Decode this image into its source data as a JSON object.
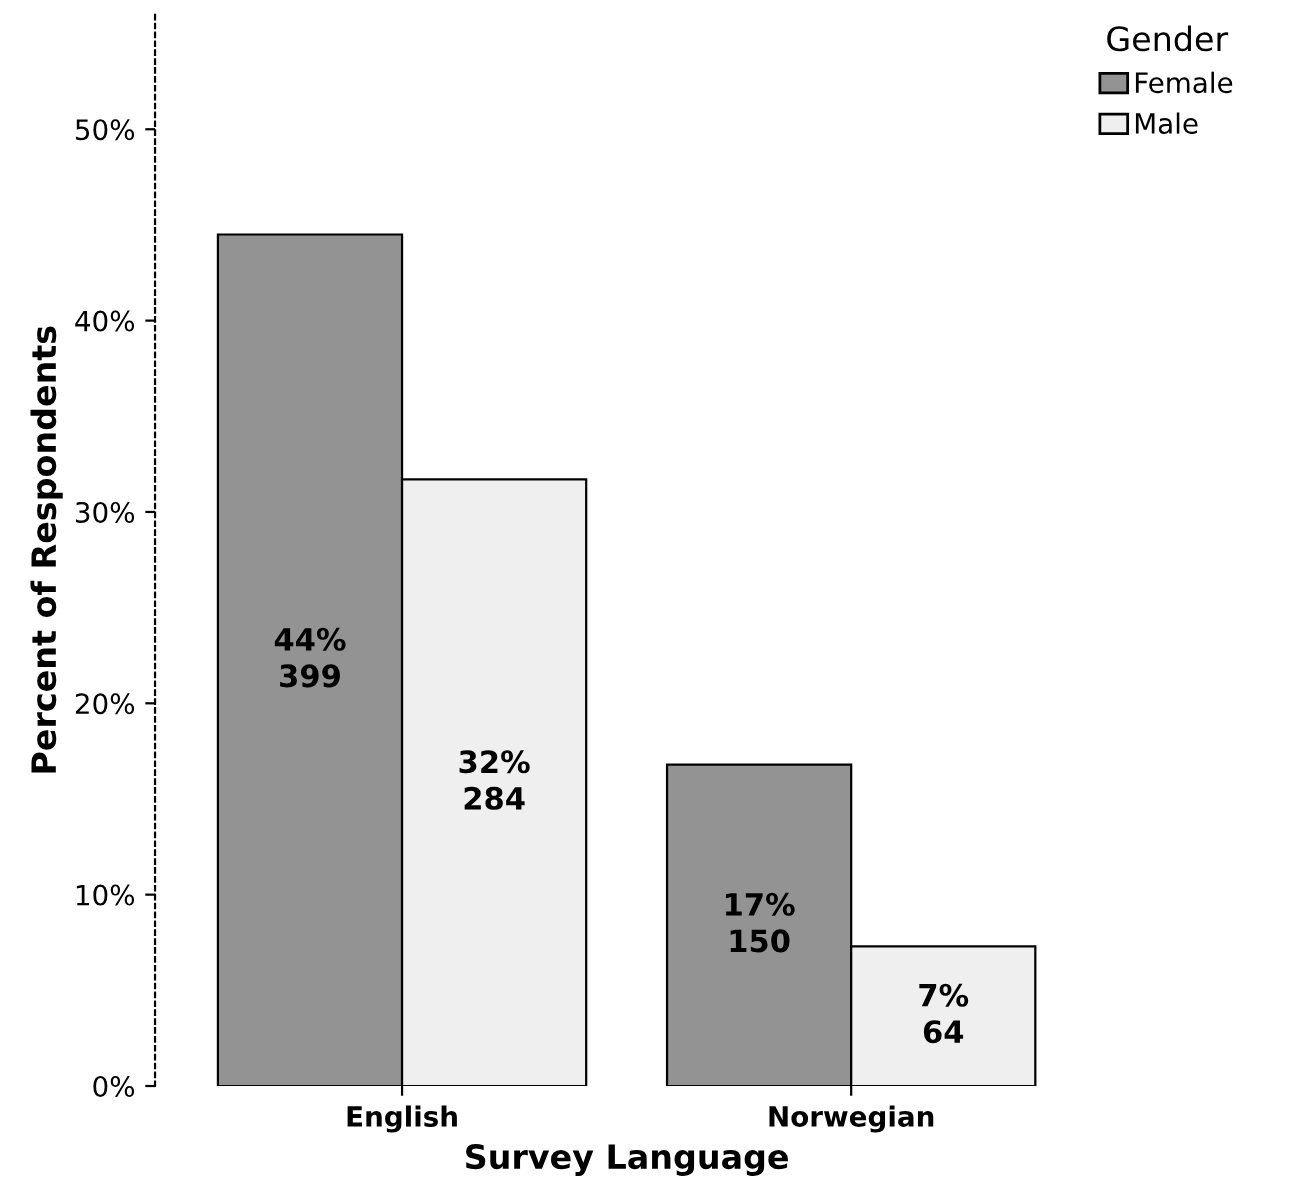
{
  "chart_data": {
    "type": "bar",
    "xlabel": "Survey Language",
    "ylabel": "Percent of Respondents",
    "legend_title": "Gender",
    "categories": [
      "English",
      "Norwegian"
    ],
    "series": [
      {
        "name": "Female",
        "color": "#939393",
        "values": [
          44.5,
          16.8
        ],
        "value_labels": [
          "44%\n399",
          "17%\n150"
        ]
      },
      {
        "name": "Male",
        "color": "#efefef",
        "values": [
          31.7,
          7.3
        ],
        "value_labels": [
          "32%\n284",
          "7%\n64"
        ]
      }
    ],
    "ylim": [
      0,
      56
    ],
    "yticks": [
      {
        "value": 0,
        "label": "0%"
      },
      {
        "value": 10,
        "label": "10%"
      },
      {
        "value": 20,
        "label": "20%"
      },
      {
        "value": 30,
        "label": "30%"
      },
      {
        "value": 40,
        "label": "40%"
      },
      {
        "value": 50,
        "label": "50%"
      }
    ],
    "grid": false,
    "legend": "top right"
  }
}
